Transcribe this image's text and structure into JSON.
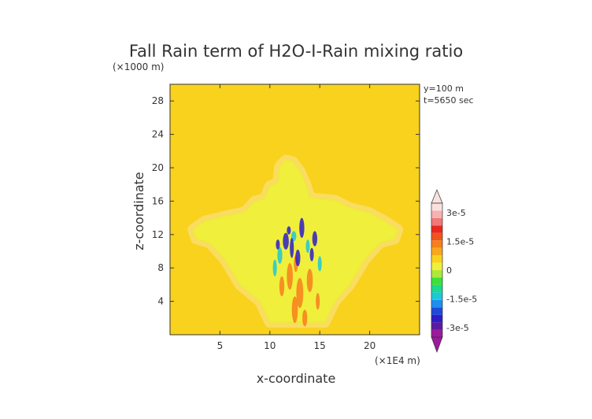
{
  "chart_data": {
    "type": "heatmap",
    "title": "Fall Rain term of H2O-I-Rain mixing ratio",
    "y_unit": "(×1000 m)",
    "x_unit": "(×1E4 m)",
    "xlabel": "x-coordinate",
    "ylabel": "z-coordinate",
    "xlim": [
      0,
      25
    ],
    "ylim": [
      0,
      30
    ],
    "x_ticks": [
      "5",
      "10",
      "15",
      "20"
    ],
    "y_ticks": [
      "4",
      "8",
      "12",
      "16",
      "20",
      "24",
      "28"
    ],
    "info": [
      "y=100 m",
      "t=5650 sec"
    ],
    "background_value": 0,
    "colorbar": {
      "labels": [
        "3e-5",
        "1.5e-5",
        "0",
        "-1.5e-5",
        "-3e-5"
      ],
      "range": [
        -3.5e-05,
        3.5e-05
      ],
      "colors": [
        "#9b1b9b",
        "#5a1aa0",
        "#2d1cc8",
        "#1e4ad8",
        "#1c8ff0",
        "#1cc8d8",
        "#1cd890",
        "#3ce03c",
        "#aee83a",
        "#f0f03c",
        "#f8d21c",
        "#f8a81c",
        "#f87e1c",
        "#f0541c",
        "#e8281c",
        "#f07878",
        "#f8b0b0",
        "#fbe0e0"
      ]
    },
    "colors": {
      "background": "#f8d21c",
      "anvil_outer": "#f0e840",
      "anvil_inner": "#f0f03c",
      "halo": "#fadc60",
      "positive": "#f87e1c",
      "negative": "#2d1cc8"
    },
    "anvil_outline": [
      [
        2.3,
        12.6
      ],
      [
        3.5,
        13.6
      ],
      [
        5.5,
        14.2
      ],
      [
        7.5,
        14.7
      ],
      [
        8.5,
        16.0
      ],
      [
        9.5,
        16.3
      ],
      [
        10.0,
        17.8
      ],
      [
        10.8,
        18.2
      ],
      [
        11.0,
        20.2
      ],
      [
        11.6,
        20.9
      ],
      [
        12.3,
        20.7
      ],
      [
        13.0,
        19.6
      ],
      [
        13.6,
        18.0
      ],
      [
        14.0,
        16.4
      ],
      [
        16.5,
        16.1
      ],
      [
        18.0,
        15.2
      ],
      [
        20.0,
        14.6
      ],
      [
        21.5,
        13.6
      ],
      [
        22.8,
        12.6
      ],
      [
        22.5,
        11.5
      ],
      [
        21.0,
        11.0
      ],
      [
        19.5,
        9.0
      ],
      [
        18.0,
        6.0
      ],
      [
        16.5,
        4.0
      ],
      [
        15.5,
        1.5
      ],
      [
        10.0,
        1.5
      ],
      [
        9.0,
        4.0
      ],
      [
        7.0,
        6.0
      ],
      [
        5.5,
        9.0
      ],
      [
        4.0,
        11.0
      ],
      [
        2.6,
        11.5
      ]
    ],
    "negative_cells": [
      [
        13.2,
        12.8,
        0.25,
        1.2
      ],
      [
        11.6,
        11.2,
        0.3,
        1.0
      ],
      [
        12.2,
        10.4,
        0.2,
        1.2
      ],
      [
        14.5,
        11.5,
        0.25,
        0.9
      ],
      [
        10.8,
        10.8,
        0.2,
        0.6
      ],
      [
        12.8,
        9.2,
        0.25,
        1.0
      ],
      [
        14.2,
        9.6,
        0.2,
        0.8
      ],
      [
        11.9,
        12.5,
        0.2,
        0.5
      ]
    ],
    "positive_cells": [
      [
        12.0,
        7.0,
        0.3,
        1.6
      ],
      [
        13.0,
        5.0,
        0.35,
        1.8
      ],
      [
        12.5,
        3.0,
        0.3,
        1.6
      ],
      [
        11.2,
        5.8,
        0.25,
        1.2
      ],
      [
        14.0,
        6.5,
        0.3,
        1.4
      ],
      [
        13.5,
        2.0,
        0.25,
        1.0
      ],
      [
        12.6,
        8.5,
        0.2,
        1.0
      ],
      [
        14.8,
        4.0,
        0.2,
        1.0
      ]
    ],
    "neutral_cells": [
      [
        11.0,
        9.5,
        0.25,
        1.0
      ],
      [
        13.8,
        10.6,
        0.2,
        0.8
      ],
      [
        10.5,
        8.0,
        0.2,
        1.0
      ],
      [
        15.0,
        8.5,
        0.2,
        0.9
      ],
      [
        12.4,
        11.8,
        0.25,
        0.6
      ]
    ]
  }
}
